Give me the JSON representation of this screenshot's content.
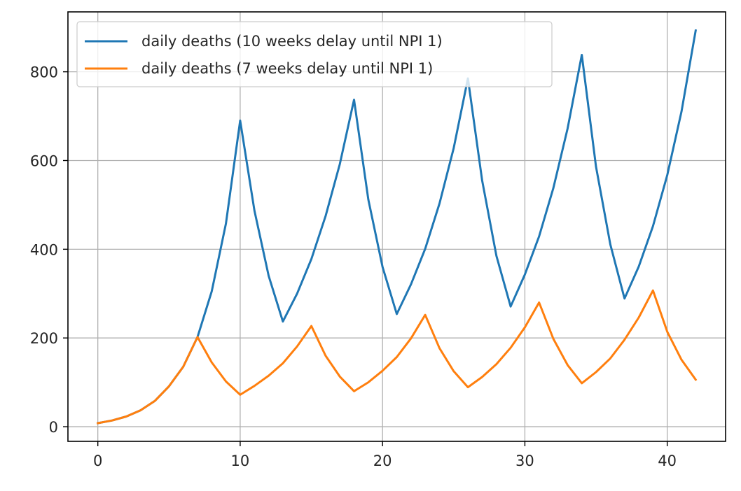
{
  "chart_data": {
    "type": "line",
    "xlim": [
      -2.1,
      44.1
    ],
    "ylim": [
      -33,
      935
    ],
    "xticks": [
      0,
      10,
      20,
      30,
      40
    ],
    "yticks": [
      0,
      200,
      400,
      600,
      800
    ],
    "grid": true,
    "legend_position": "top-left",
    "series": [
      {
        "name": "daily deaths (10 weeks delay until NPI 1)",
        "color": "#1f77b4",
        "x": [
          0,
          1,
          2,
          3,
          4,
          5,
          6,
          7,
          8,
          9,
          10,
          11,
          12,
          13,
          14,
          15,
          16,
          17,
          18,
          19,
          20,
          21,
          22,
          23,
          24,
          25,
          26,
          27,
          28,
          29,
          30,
          31,
          32,
          33,
          34,
          35,
          36,
          37,
          38,
          39,
          40,
          41,
          42
        ],
        "y": [
          8,
          14,
          23,
          37,
          58,
          91,
          135,
          202,
          305,
          458,
          690,
          487,
          340,
          237,
          300,
          378,
          475,
          592,
          737,
          512,
          360,
          254,
          321,
          401,
          503,
          628,
          785,
          555,
          385,
          271,
          343,
          429,
          538,
          672,
          838,
          586,
          411,
          289,
          361,
          452,
          567,
          710,
          893
        ]
      },
      {
        "name": "daily deaths (7 weeks delay until NPI 1)",
        "color": "#ff7f0e",
        "x": [
          0,
          1,
          2,
          3,
          4,
          5,
          6,
          7,
          8,
          9,
          10,
          11,
          12,
          13,
          14,
          15,
          16,
          17,
          18,
          19,
          20,
          21,
          22,
          23,
          24,
          25,
          26,
          27,
          28,
          29,
          30,
          31,
          32,
          33,
          34,
          35,
          36,
          37,
          38,
          39,
          40,
          41,
          42
        ],
        "y": [
          8,
          14,
          23,
          37,
          58,
          91,
          135,
          202,
          145,
          102,
          72,
          92,
          115,
          143,
          181,
          227,
          160,
          113,
          80,
          100,
          126,
          157,
          199,
          252,
          177,
          125,
          89,
          112,
          141,
          178,
          224,
          280,
          198,
          139,
          98,
          123,
          154,
          196,
          246,
          307,
          214,
          151,
          106
        ]
      }
    ]
  }
}
